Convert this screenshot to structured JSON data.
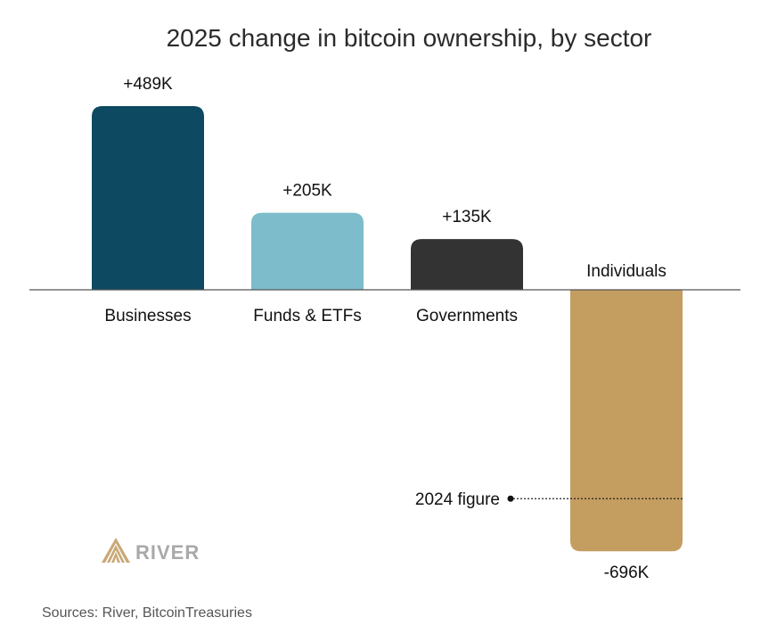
{
  "chart_data": {
    "type": "bar",
    "title": "2025 change in bitcoin ownership, by sector",
    "categories": [
      "Businesses",
      "Funds & ETFs",
      "Governments",
      "Individuals"
    ],
    "values": [
      489,
      205,
      135,
      -696
    ],
    "value_labels": [
      "+489K",
      "+205K",
      "+135K",
      "-696K"
    ],
    "unit": "K",
    "colors": [
      "#0d4a61",
      "#7dbccb",
      "#333333",
      "#c49d60"
    ],
    "ylim": [
      -696,
      489
    ],
    "grid": false,
    "legend": "none",
    "annotation": {
      "label": "2024 figure",
      "category": "Individuals",
      "value": -556
    }
  },
  "source": "Sources: River, BitcoinTreasuries",
  "logo": {
    "text": "RIVER",
    "color": "#c9a877"
  }
}
